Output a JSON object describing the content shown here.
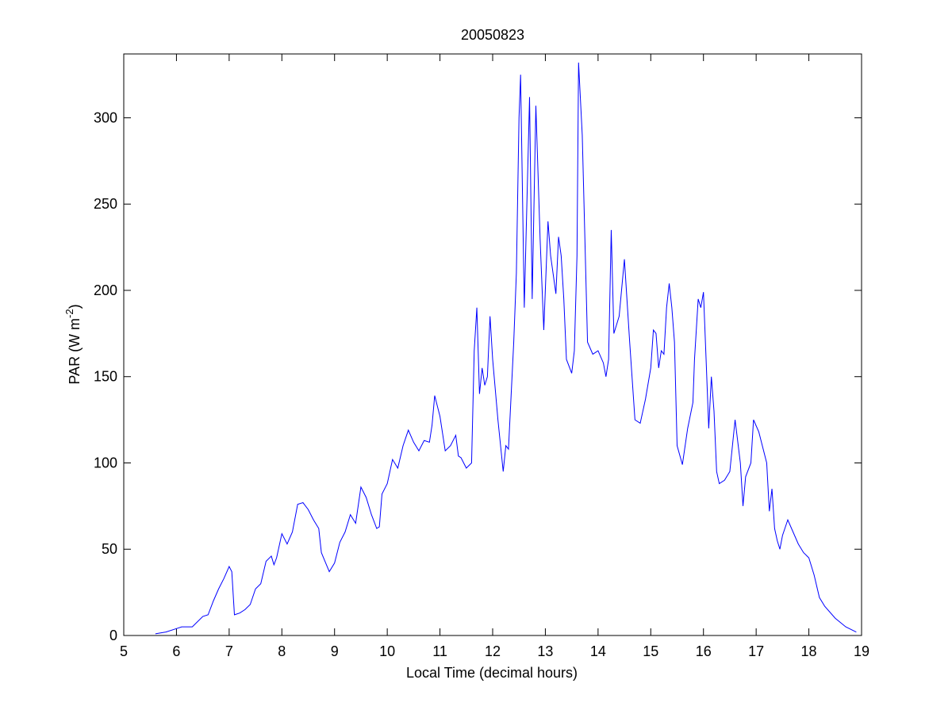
{
  "chart_data": {
    "type": "line",
    "title": "20050823",
    "xlabel": "Local Time (decimal hours)",
    "ylabel": [
      "PAR (W m",
      "-2",
      ")"
    ],
    "x": [
      5.6,
      5.8,
      6.0,
      6.1,
      6.3,
      6.5,
      6.6,
      6.7,
      6.8,
      6.9,
      7.0,
      7.05,
      7.1,
      7.2,
      7.3,
      7.4,
      7.5,
      7.6,
      7.7,
      7.8,
      7.85,
      7.9,
      8.0,
      8.1,
      8.2,
      8.3,
      8.4,
      8.5,
      8.6,
      8.7,
      8.75,
      8.9,
      9.0,
      9.1,
      9.2,
      9.3,
      9.4,
      9.5,
      9.6,
      9.7,
      9.8,
      9.85,
      9.9,
      10.0,
      10.1,
      10.2,
      10.3,
      10.4,
      10.5,
      10.6,
      10.7,
      10.8,
      10.85,
      10.9,
      11.0,
      11.1,
      11.2,
      11.3,
      11.35,
      11.4,
      11.5,
      11.6,
      11.65,
      11.7,
      11.75,
      11.8,
      11.85,
      11.9,
      11.95,
      12.0,
      12.1,
      12.2,
      12.25,
      12.3,
      12.4,
      12.45,
      12.5,
      12.53,
      12.6,
      12.7,
      12.75,
      12.82,
      12.9,
      12.97,
      13.05,
      13.1,
      13.2,
      13.25,
      13.3,
      13.35,
      13.4,
      13.5,
      13.55,
      13.6,
      13.63,
      13.7,
      13.8,
      13.9,
      14.0,
      14.1,
      14.15,
      14.2,
      14.25,
      14.3,
      14.4,
      14.5,
      14.6,
      14.7,
      14.8,
      14.9,
      15.0,
      15.05,
      15.1,
      15.15,
      15.2,
      15.25,
      15.3,
      15.35,
      15.4,
      15.45,
      15.5,
      15.6,
      15.7,
      15.8,
      15.83,
      15.9,
      15.95,
      16.0,
      16.05,
      16.1,
      16.15,
      16.2,
      16.25,
      16.3,
      16.4,
      16.5,
      16.6,
      16.7,
      16.75,
      16.8,
      16.9,
      16.95,
      17.05,
      17.1,
      17.2,
      17.25,
      17.3,
      17.35,
      17.4,
      17.45,
      17.5,
      17.6,
      17.7,
      17.8,
      17.9,
      18.0,
      18.1,
      18.2,
      18.3,
      18.5,
      18.7,
      18.9
    ],
    "series": [
      {
        "color": "#0000ff",
        "values": [
          1,
          2,
          4,
          5,
          5,
          11,
          12,
          20,
          27,
          33,
          40,
          37,
          12,
          13,
          15,
          18,
          27,
          30,
          43,
          46,
          41,
          45,
          59,
          53,
          60,
          76,
          77,
          73,
          67,
          62,
          48,
          37,
          42,
          54,
          60,
          70,
          65,
          86,
          80,
          70,
          62,
          63,
          82,
          88,
          102,
          97,
          110,
          119,
          112,
          107,
          113,
          112,
          122,
          139,
          127,
          107,
          110,
          116,
          104,
          103,
          97,
          100,
          165,
          190,
          140,
          155,
          145,
          150,
          185,
          160,
          125,
          95,
          110,
          108,
          170,
          210,
          300,
          325,
          190,
          312,
          195,
          307,
          230,
          177,
          240,
          220,
          198,
          231,
          220,
          195,
          160,
          152,
          165,
          220,
          332,
          290,
          170,
          163,
          165,
          158,
          150,
          160,
          235,
          175,
          185,
          218,
          170,
          125,
          123,
          137,
          155,
          177,
          175,
          155,
          165,
          163,
          190,
          204,
          190,
          170,
          110,
          99,
          120,
          135,
          160,
          195,
          190,
          199,
          160,
          120,
          150,
          130,
          95,
          88,
          90,
          95,
          125,
          100,
          75,
          92,
          100,
          125,
          118,
          112,
          100,
          72,
          85,
          62,
          55,
          50,
          58,
          67,
          60,
          53,
          48,
          45,
          35,
          22,
          17,
          10,
          5,
          2
        ]
      }
    ],
    "xlim": [
      5,
      19
    ],
    "xticks": [
      5,
      6,
      7,
      8,
      9,
      10,
      11,
      12,
      13,
      14,
      15,
      16,
      17,
      18,
      19
    ],
    "ylim": [
      0,
      337
    ],
    "yticks": [
      0,
      50,
      100,
      150,
      200,
      250,
      300
    ]
  }
}
